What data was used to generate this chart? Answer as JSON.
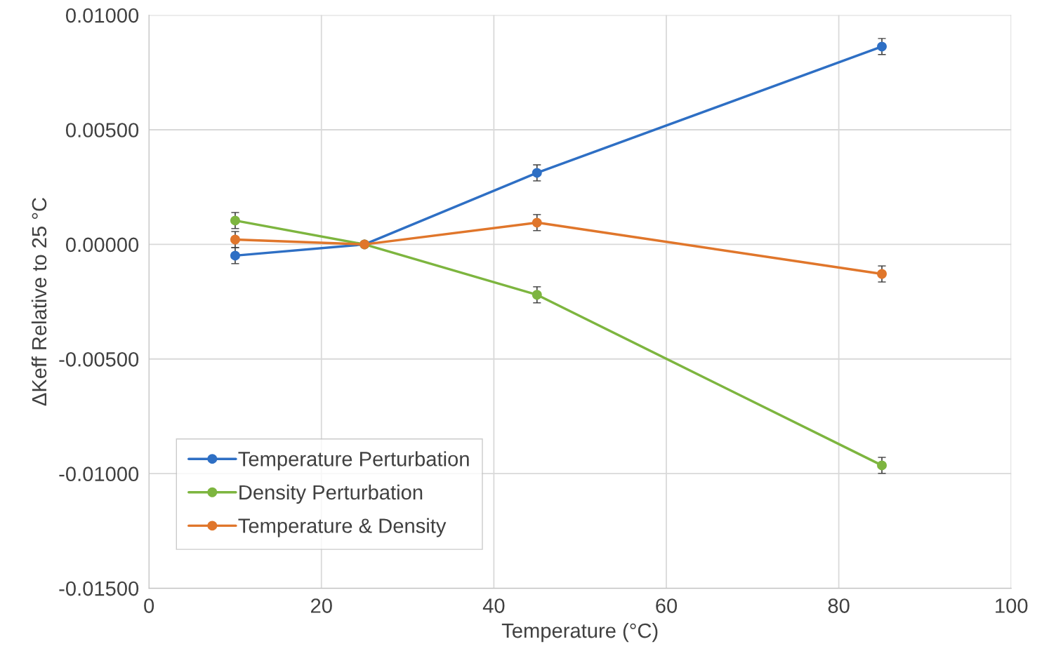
{
  "chart_data": {
    "type": "line",
    "xlabel": "Temperature (°C)",
    "ylabel": "ΔKeff Relative to 25 °C",
    "x": [
      10,
      25,
      45,
      85
    ],
    "series": [
      {
        "name": "Temperature Perturbation",
        "color": "#2e6fc4",
        "values": [
          -0.00049,
          0,
          0.00312,
          0.00863
        ],
        "errors": [
          0.00035,
          null,
          0.00035,
          0.00035
        ]
      },
      {
        "name": "Density Perturbation",
        "color": "#7db53f",
        "values": [
          0.00104,
          0,
          -0.0022,
          -0.00964
        ],
        "errors": [
          0.00035,
          null,
          0.00035,
          0.00035
        ]
      },
      {
        "name": "Temperature & Density",
        "color": "#e0762b",
        "values": [
          0.00021,
          0,
          0.00095,
          -0.00129
        ],
        "errors": [
          0.00035,
          null,
          0.00035,
          0.00035
        ]
      }
    ],
    "xlim": [
      0,
      100
    ],
    "xticks": [
      0,
      20,
      40,
      60,
      80,
      100
    ],
    "ylim": [
      -0.015,
      0.01
    ],
    "yticks": [
      {
        "value": -0.015,
        "label": "-0.01500"
      },
      {
        "value": -0.01,
        "label": "-0.01000"
      },
      {
        "value": -0.005,
        "label": "-0.00500"
      },
      {
        "value": 0,
        "label": "0.00000"
      },
      {
        "value": 0.005,
        "label": "0.00500"
      },
      {
        "value": 0.01,
        "label": "0.01000"
      }
    ],
    "grid": true,
    "legend": "bottom left",
    "marker": "circle",
    "line_style": "solid"
  }
}
